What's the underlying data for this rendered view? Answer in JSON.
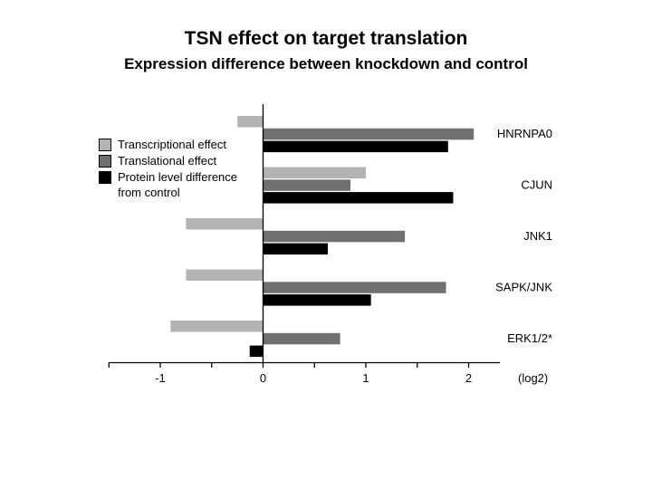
{
  "chart_data": {
    "type": "bar",
    "orientation": "horizontal",
    "title": "TSN effect on target translation",
    "subtitle": "Expression difference between knockdown and control",
    "x_unit_label": "(log2)",
    "xlim": [
      -1.5,
      2.25
    ],
    "x_ticks": [
      -1,
      0,
      1,
      2
    ],
    "grid": false,
    "legend_position": "left",
    "categories": [
      "HNRNPA0",
      "CJUN",
      "JNK1",
      "SAPK/JNK",
      "ERK1/2*"
    ],
    "series": [
      {
        "name": "Transcriptional effect",
        "color": "#b3b3b3",
        "values": [
          -0.25,
          1.0,
          -0.75,
          -0.75,
          -0.9
        ]
      },
      {
        "name": "Translational effect",
        "color": "#707070",
        "values": [
          2.05,
          0.85,
          1.38,
          1.78,
          0.75
        ]
      },
      {
        "name": "Protein level difference from control",
        "color": "#000000",
        "values": [
          1.8,
          1.85,
          0.63,
          1.05,
          -0.13
        ]
      }
    ]
  }
}
